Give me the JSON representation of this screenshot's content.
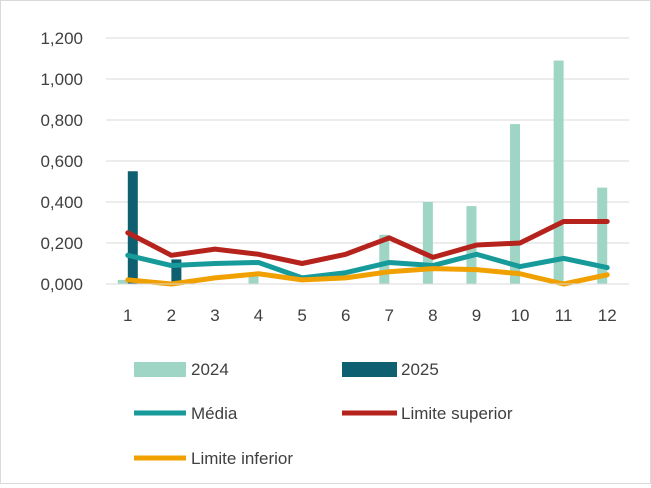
{
  "chart_data": {
    "type": "bar",
    "categories": [
      "1",
      "2",
      "3",
      "4",
      "5",
      "6",
      "7",
      "8",
      "9",
      "10",
      "11",
      "12"
    ],
    "ylim": [
      0,
      1.2
    ],
    "yticks": [
      0,
      0.2,
      0.4,
      0.6,
      0.8,
      1.0,
      1.2
    ],
    "ytick_labels": [
      "0,000",
      "0,200",
      "0,400",
      "0,600",
      "0,800",
      "1,000",
      "1,200"
    ],
    "gridlines": true,
    "legend_position": "bottom",
    "series": [
      {
        "name": "2024",
        "kind": "bar",
        "color": "#9fd5c4",
        "values": [
          0.02,
          0.0,
          0.0,
          0.04,
          0.0,
          0.0,
          0.24,
          0.4,
          0.38,
          0.78,
          1.09,
          0.47
        ]
      },
      {
        "name": "2025",
        "kind": "bar",
        "color": "#0e5f70",
        "values": [
          0.55,
          0.12,
          null,
          null,
          null,
          null,
          null,
          null,
          null,
          null,
          null,
          null
        ]
      },
      {
        "name": "Média",
        "kind": "line",
        "color": "#169a9a",
        "values": [
          0.14,
          0.09,
          0.1,
          0.105,
          0.03,
          0.055,
          0.105,
          0.09,
          0.145,
          0.085,
          0.125,
          0.08
        ]
      },
      {
        "name": "Limite superior",
        "kind": "line",
        "color": "#b5231c",
        "values": [
          0.25,
          0.14,
          0.17,
          0.145,
          0.1,
          0.145,
          0.225,
          0.13,
          0.19,
          0.2,
          0.305,
          0.305
        ]
      },
      {
        "name": "Limite inferior",
        "kind": "line",
        "color": "#f0a000",
        "values": [
          0.02,
          0.0,
          0.03,
          0.05,
          0.02,
          0.03,
          0.06,
          0.075,
          0.07,
          0.05,
          0.0,
          0.045
        ]
      }
    ]
  }
}
